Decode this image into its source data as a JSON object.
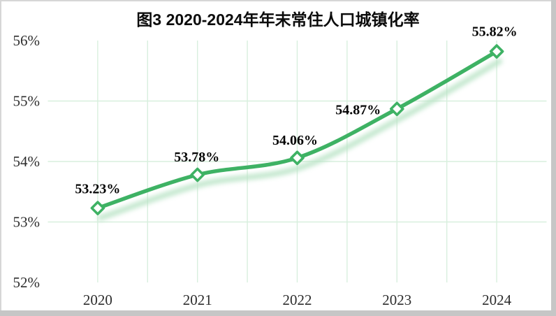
{
  "window": {
    "edge_color": "#c6c6c6"
  },
  "chart_data": {
    "type": "line",
    "title": "图3 2020-2024年年末常住人口城镇化率",
    "categories": [
      "2020",
      "2021",
      "2022",
      "2023",
      "2024"
    ],
    "values": [
      53.23,
      53.78,
      54.06,
      54.87,
      55.82
    ],
    "data_labels": [
      "53.23%",
      "53.78%",
      "54.06%",
      "54.87%",
      "55.82%"
    ],
    "ylim": [
      52,
      56
    ],
    "ytick_step": 1,
    "ytick_labels": [
      "52%",
      "53%",
      "54%",
      "55%",
      "56%"
    ],
    "xlabel": "",
    "ylabel": "",
    "grid": "on",
    "legend": "none",
    "marker": "open-diamond",
    "colors": {
      "line": "#3eb264",
      "glow": "#b7e3c4",
      "grid": "#d8efde",
      "border_dark": "#2fae58",
      "border_pale": "#d8efde",
      "marker_fill": "#ffffff",
      "tick_text": "#2d2d2d",
      "label_text": "#050505",
      "title_text": "#0c0c0c"
    }
  }
}
